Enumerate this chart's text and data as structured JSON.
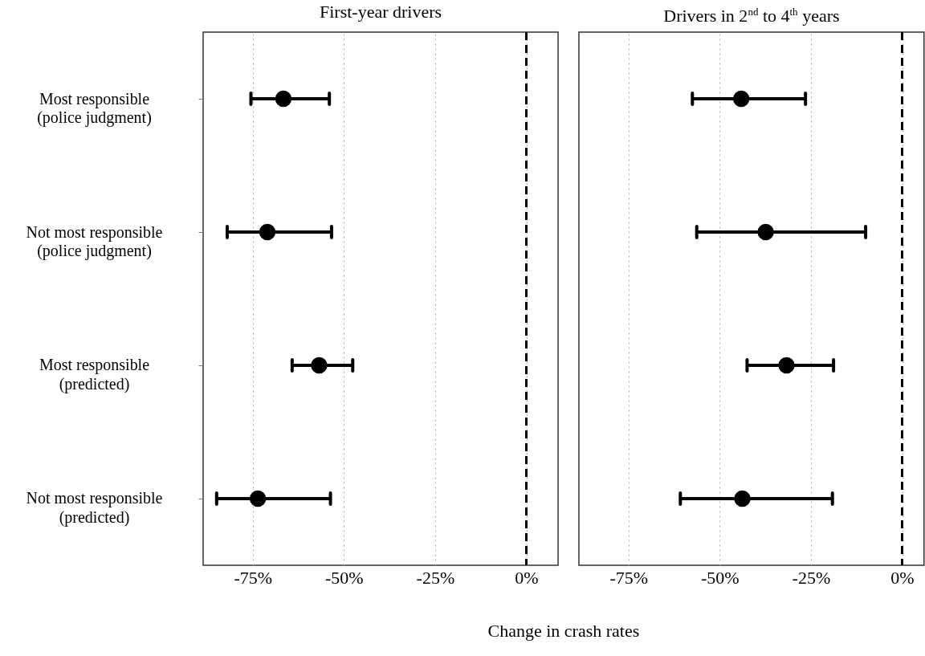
{
  "chart_data": [
    {
      "type": "scatter",
      "title": "First-year drivers",
      "xlabel": "Change in crash rates",
      "orientation": "horizontal",
      "categories": [
        "Most responsible\n(police judgment)",
        "Not most responsible\n(police judgment)",
        "Most responsible\n(predicted)",
        "Not most responsible\n(predicted)"
      ],
      "values": [
        -66.6,
        -71.0,
        -56.8,
        -73.6
      ],
      "errors": [
        [
          -75.5,
          -54.0
        ],
        [
          -82.0,
          -53.4
        ],
        [
          -64.2,
          -47.6
        ],
        [
          -84.9,
          -53.7
        ]
      ],
      "color": "#000000",
      "marker": "circle",
      "xlim": [
        -88.6,
        8.7
      ],
      "xticks": [
        {
          "value": -75,
          "label": "-75%"
        },
        {
          "value": -50,
          "label": "-50%"
        },
        {
          "value": -25,
          "label": "-25%"
        },
        {
          "value": 0,
          "label": "0%"
        }
      ],
      "grid": "x",
      "ref_lines": [
        {
          "axis": "x",
          "value": 0,
          "line_style": "dashed"
        }
      ]
    },
    {
      "type": "scatter",
      "title": "Drivers in 2$^{nd}$ to 4$^{th}$ years",
      "orientation": "horizontal",
      "categories": [
        null,
        null,
        null,
        null
      ],
      "values": [
        -44.1,
        -37.4,
        -31.7,
        -43.8
      ],
      "errors": [
        [
          -57.5,
          -26.5
        ],
        [
          -56.3,
          -10.0
        ],
        [
          -42.5,
          -18.8
        ],
        [
          -60.8,
          -19.1
        ]
      ],
      "color": "#000000",
      "marker": "circle",
      "xlim": [
        -88.6,
        6
      ],
      "xticks": [
        {
          "value": -75,
          "label": "-75%"
        },
        {
          "value": -50,
          "label": "-50%"
        },
        {
          "value": -25,
          "label": "-25%"
        },
        {
          "value": 0,
          "label": "0%"
        }
      ],
      "grid": "x",
      "tick_labels": "x",
      "ref_lines": [
        {
          "axis": "x",
          "value": 0,
          "line_style": "dashed"
        }
      ]
    }
  ]
}
